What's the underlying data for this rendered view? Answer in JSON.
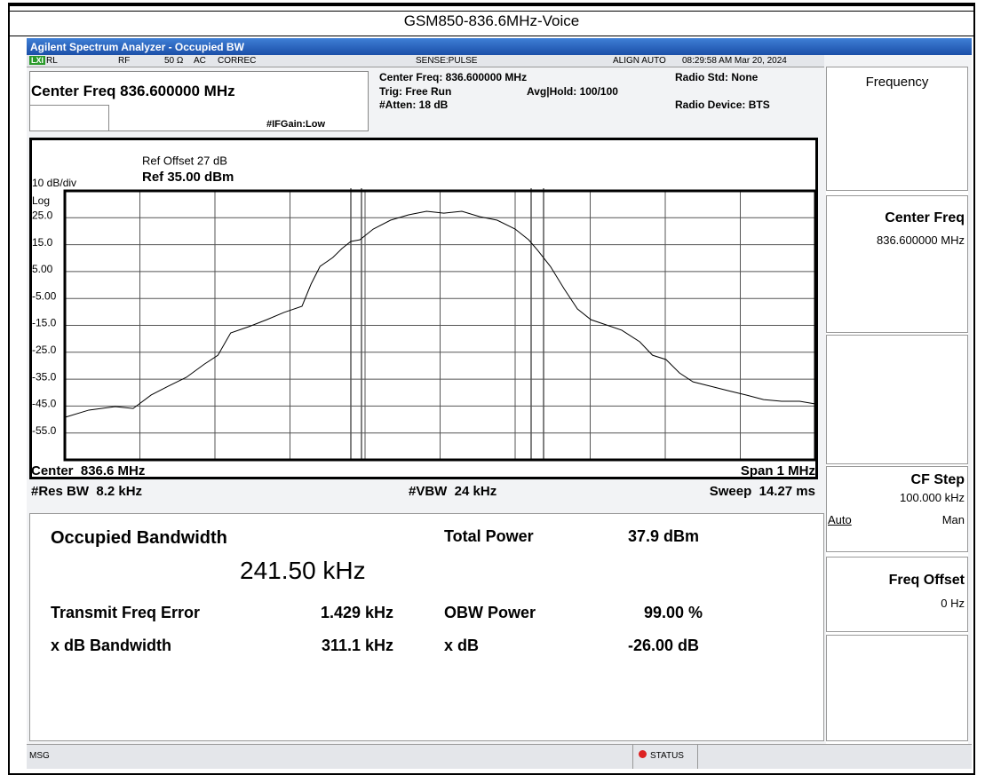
{
  "caption": "GSM850-836.6MHz-Voice",
  "window_title": "Agilent Spectrum Analyzer - Occupied BW",
  "status_bar": {
    "lxi": "LXI",
    "rl": "RL",
    "rf": "RF",
    "impedance": "50 Ω",
    "coupling": "AC",
    "correc": "CORREC",
    "sense": "SENSE:PULSE",
    "align": "ALIGN AUTO",
    "timestamp": "08:29:58 AM Mar 20, 2024"
  },
  "settings": {
    "center_freq_entry": "Center Freq 836.600000 MHz",
    "if_gain": "#IFGain:Low",
    "center_freq": "Center Freq: 836.600000 MHz",
    "trig": "Trig: Free Run",
    "atten": "#Atten: 18 dB",
    "avg_hold": "Avg|Hold: 100/100",
    "radio_std": "Radio Std: None",
    "radio_device": "Radio Device: BTS"
  },
  "softkeys": {
    "menu": "Frequency",
    "center_freq": "Center Freq",
    "center_freq_value": "836.600000 MHz",
    "cf_step": "CF Step",
    "cf_step_value": "100.000 kHz",
    "auto": "Auto",
    "man": "Man",
    "freq_offset": "Freq Offset",
    "freq_offset_value": "0 Hz"
  },
  "chart_data": {
    "type": "line",
    "ref_offset": "Ref Offset 27 dB",
    "ref_level": "Ref 35.00 dBm",
    "scale": "10 dB/div",
    "scale_type": "Log",
    "xlim": [
      836.1,
      837.1
    ],
    "ylim": [
      -65,
      35
    ],
    "yticks": [
      {
        "value": 25,
        "label": "25.0"
      },
      {
        "value": 15,
        "label": "15.0"
      },
      {
        "value": 5,
        "label": "5.00"
      },
      {
        "value": -5,
        "label": "-5.00"
      },
      {
        "value": -15,
        "label": "-15.0"
      },
      {
        "value": -25,
        "label": "-25.0"
      },
      {
        "value": -35,
        "label": "-35.0"
      },
      {
        "value": -45,
        "label": "-45.0"
      },
      {
        "value": -55,
        "label": "-55.0"
      }
    ],
    "grid": true,
    "color": "#000000",
    "x": [
      836.1,
      836.132,
      836.167,
      836.191,
      836.215,
      836.238,
      836.262,
      836.286,
      836.304,
      836.321,
      836.345,
      836.369,
      836.392,
      836.416,
      836.428,
      836.44,
      836.457,
      836.469,
      836.481,
      836.493,
      836.511,
      836.534,
      836.558,
      836.582,
      836.605,
      836.629,
      836.653,
      836.676,
      836.7,
      836.718,
      836.73,
      836.747,
      836.765,
      836.783,
      836.801,
      836.818,
      836.842,
      836.866,
      836.883,
      836.901,
      836.919,
      836.937,
      836.96,
      836.984,
      837.008,
      837.031,
      837.055,
      837.079,
      837.1
    ],
    "values": [
      -49.2,
      -46.5,
      -45.2,
      -45.9,
      -40.9,
      -37.6,
      -34.3,
      -29.4,
      -26.1,
      -17.8,
      -15.5,
      -12.9,
      -10.2,
      -7.9,
      0.3,
      6.9,
      10.2,
      13.5,
      16.2,
      16.8,
      20.8,
      24.1,
      26.1,
      27.4,
      26.7,
      27.4,
      25.4,
      24.1,
      20.8,
      16.8,
      12.9,
      6.9,
      -1.3,
      -8.9,
      -12.9,
      -14.5,
      -16.8,
      -21.1,
      -26.1,
      -27.7,
      -32.7,
      -36,
      -37.6,
      -39.3,
      -40.9,
      -42.6,
      -43.2,
      -43.2,
      -44.2
    ],
    "center": "Center  836.6 MHz",
    "span": "Span 1 MHz",
    "res_bw": "#Res BW  8.2 kHz",
    "vbw": "#VBW  24 kHz",
    "sweep": "Sweep  14.27 ms"
  },
  "results": {
    "obw_label": "Occupied Bandwidth",
    "obw_value": "241.50 kHz",
    "total_power_label": "Total Power",
    "total_power_value": "37.9 dBm",
    "freq_error_label": "Transmit Freq Error",
    "freq_error_value": "1.429 kHz",
    "obw_power_label": "OBW Power",
    "obw_power_value": "99.00 %",
    "xdb_bw_label": "x dB Bandwidth",
    "xdb_bw_value": "311.1 kHz",
    "xdb_label": "x dB",
    "xdb_value": "-26.00 dB"
  },
  "footer": {
    "msg": "MSG",
    "status": "STATUS"
  }
}
